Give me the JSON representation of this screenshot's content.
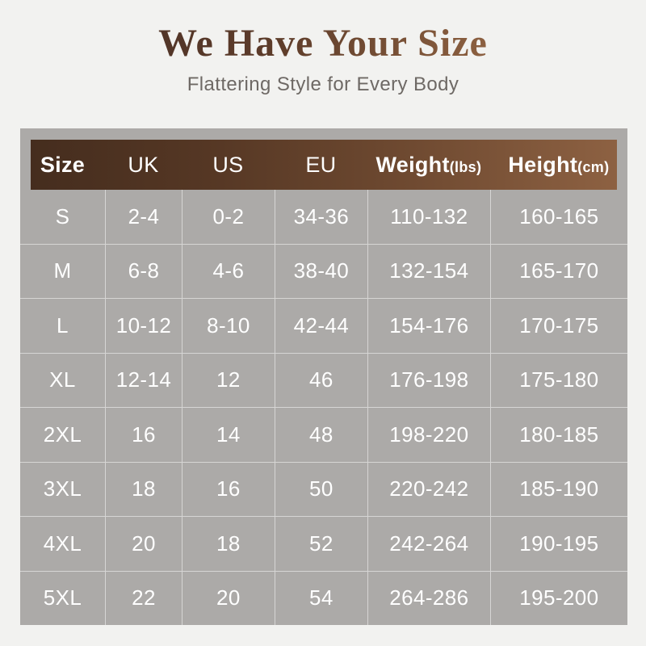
{
  "header": {
    "title": "We Have Your Size",
    "subtitle": "Flattering Style for Every Body"
  },
  "colors": {
    "page_bg": "#f2f2f0",
    "panel_bg": "#acaaa8",
    "header_bar_gradient_left": "#452d1e",
    "header_bar_gradient_right": "#8d6142",
    "title_gradient_left": "#523528",
    "title_gradient_right": "#8c6040",
    "subtitle_text": "#6e6965",
    "cell_text": "#ffffff",
    "grid_line": "rgba(255,255,255,0.5)"
  },
  "size_table": {
    "headers": [
      {
        "label": "Size",
        "unit": ""
      },
      {
        "label": "UK",
        "unit": ""
      },
      {
        "label": "US",
        "unit": ""
      },
      {
        "label": "EU",
        "unit": ""
      },
      {
        "label": "Weight",
        "unit": "(lbs)"
      },
      {
        "label": "Height",
        "unit": "(cm)"
      }
    ],
    "rows": [
      [
        "S",
        "2-4",
        "0-2",
        "34-36",
        "110-132",
        "160-165"
      ],
      [
        "M",
        "6-8",
        "4-6",
        "38-40",
        "132-154",
        "165-170"
      ],
      [
        "L",
        "10-12",
        "8-10",
        "42-44",
        "154-176",
        "170-175"
      ],
      [
        "XL",
        "12-14",
        "12",
        "46",
        "176-198",
        "175-180"
      ],
      [
        "2XL",
        "16",
        "14",
        "48",
        "198-220",
        "180-185"
      ],
      [
        "3XL",
        "18",
        "16",
        "50",
        "220-242",
        "185-190"
      ],
      [
        "4XL",
        "20",
        "18",
        "52",
        "242-264",
        "190-195"
      ],
      [
        "5XL",
        "22",
        "20",
        "54",
        "264-286",
        "195-200"
      ]
    ]
  },
  "chart_data": {
    "type": "table",
    "title": "We Have Your Size",
    "subtitle": "Flattering Style for Every Body",
    "columns": [
      "Size",
      "UK",
      "US",
      "EU",
      "Weight(lbs)",
      "Height(cm)"
    ],
    "rows": [
      [
        "S",
        "2-4",
        "0-2",
        "34-36",
        "110-132",
        "160-165"
      ],
      [
        "M",
        "6-8",
        "4-6",
        "38-40",
        "132-154",
        "165-170"
      ],
      [
        "L",
        "10-12",
        "8-10",
        "42-44",
        "154-176",
        "170-175"
      ],
      [
        "XL",
        "12-14",
        "12",
        "46",
        "176-198",
        "175-180"
      ],
      [
        "2XL",
        "16",
        "14",
        "48",
        "198-220",
        "180-185"
      ],
      [
        "3XL",
        "18",
        "16",
        "50",
        "220-242",
        "185-190"
      ],
      [
        "4XL",
        "20",
        "18",
        "52",
        "242-264",
        "190-195"
      ],
      [
        "5XL",
        "22",
        "20",
        "54",
        "264-286",
        "195-200"
      ]
    ]
  }
}
